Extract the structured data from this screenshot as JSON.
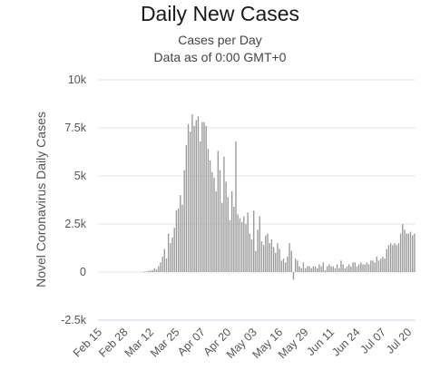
{
  "chart_data": {
    "type": "bar",
    "title": "Daily New Cases",
    "subtitle_lines": [
      "Cases per Day",
      "Data as of 0:00 GMT+0"
    ],
    "ylabel": "Novel Coronavirus Daily Cases",
    "xlabel": "",
    "ylim": [
      -2500,
      10000
    ],
    "yticks": [
      {
        "value": 10000,
        "label": "10k"
      },
      {
        "value": 7500,
        "label": "7.5k"
      },
      {
        "value": 5000,
        "label": "5k"
      },
      {
        "value": 2500,
        "label": "2.5k"
      },
      {
        "value": 0,
        "label": "0"
      },
      {
        "value": -2500,
        "label": "-2.5k"
      }
    ],
    "xtick_labels": [
      "Feb 15",
      "Feb 28",
      "Mar 12",
      "Mar 25",
      "Apr 07",
      "Apr 20",
      "May 03",
      "May 16",
      "May 29",
      "Jun 11",
      "Jun 24",
      "Jul 07",
      "Jul 20"
    ],
    "first_date": "Feb 15",
    "grid": true,
    "bar_color": "#999999",
    "grid_color": "#e6e6e6",
    "baseline_color": "#ccd6eb",
    "values": [
      0,
      0,
      0,
      0,
      0,
      0,
      0,
      0,
      0,
      0,
      0,
      0,
      0,
      0,
      0,
      0,
      0,
      0,
      0,
      0,
      0,
      0,
      0,
      20,
      40,
      60,
      80,
      100,
      200,
      150,
      300,
      500,
      800,
      1200,
      700,
      2000,
      1500,
      1800,
      2300,
      3200,
      3300,
      4000,
      3500,
      5300,
      6600,
      7700,
      7300,
      8200,
      7600,
      7900,
      8100,
      6800,
      7800,
      7800,
      7600,
      6400,
      5800,
      5200,
      4900,
      4200,
      6300,
      5300,
      3600,
      6000,
      4700,
      3900,
      2700,
      4200,
      3400,
      6800,
      3000,
      2800,
      2600,
      2900,
      2500,
      3100,
      2000,
      1700,
      3200,
      1100,
      2200,
      2900,
      1600,
      1400,
      1900,
      2000,
      1500,
      1700,
      1300,
      1000,
      1500,
      1200,
      600,
      700,
      500,
      800,
      1500,
      1100,
      -400,
      700,
      600,
      300,
      200,
      500,
      200,
      300,
      300,
      200,
      300,
      300,
      200,
      400,
      300,
      500,
      100,
      300,
      400,
      300,
      300,
      200,
      400,
      200,
      600,
      400,
      200,
      300,
      400,
      300,
      500,
      500,
      300,
      400,
      500,
      400,
      400,
      500,
      400,
      600,
      600,
      500,
      800,
      600,
      700,
      800,
      700,
      1200,
      1400,
      1500,
      1400,
      1500,
      1400,
      1500,
      2000,
      2500,
      2200,
      2000,
      2000,
      2100,
      1900,
      2000
    ]
  }
}
